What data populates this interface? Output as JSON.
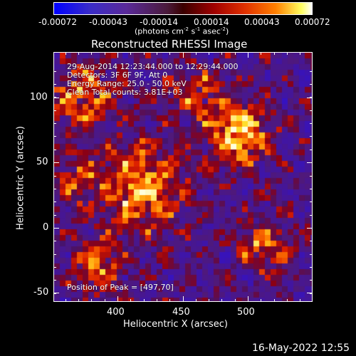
{
  "colorbar": {
    "tick_labels": [
      "-0.00072",
      "-0.00043",
      "-0.00014",
      "0.00014",
      "0.00043",
      "0.00072"
    ],
    "units_label": "(photons cm",
    "units_sup1": "-2",
    "units_mid": " s",
    "units_sup2": "-1",
    "units_end": " asec",
    "units_sup3": "-2",
    "units_close": ")"
  },
  "title": "Reconstructed RHESSI Image",
  "annotations": {
    "time": "29-Aug-2014 12:23:44.000 to 12:29:44.000",
    "detectors": "Detectors: 3F 6F 9F, Att 0",
    "energy": "Energy Range: 25.0 - 50.0 keV",
    "clean": "Clean    Total counts: 3.81E+03",
    "peak": "Position of Peak = [497,70]"
  },
  "axes": {
    "xlabel": "Heliocentric X (arcsec)",
    "ylabel": "Heliocentric Y (arcsec)",
    "xticks": [
      "400",
      "450",
      "500"
    ],
    "yticks": [
      "100",
      "50",
      "0",
      "-50"
    ],
    "xlim": [
      355,
      545
    ],
    "ylim": [
      -56,
      127
    ]
  },
  "footer_timestamp": "16-May-2022 12:55",
  "colors": {
    "background": "#000000",
    "text": "#ffffff"
  }
}
